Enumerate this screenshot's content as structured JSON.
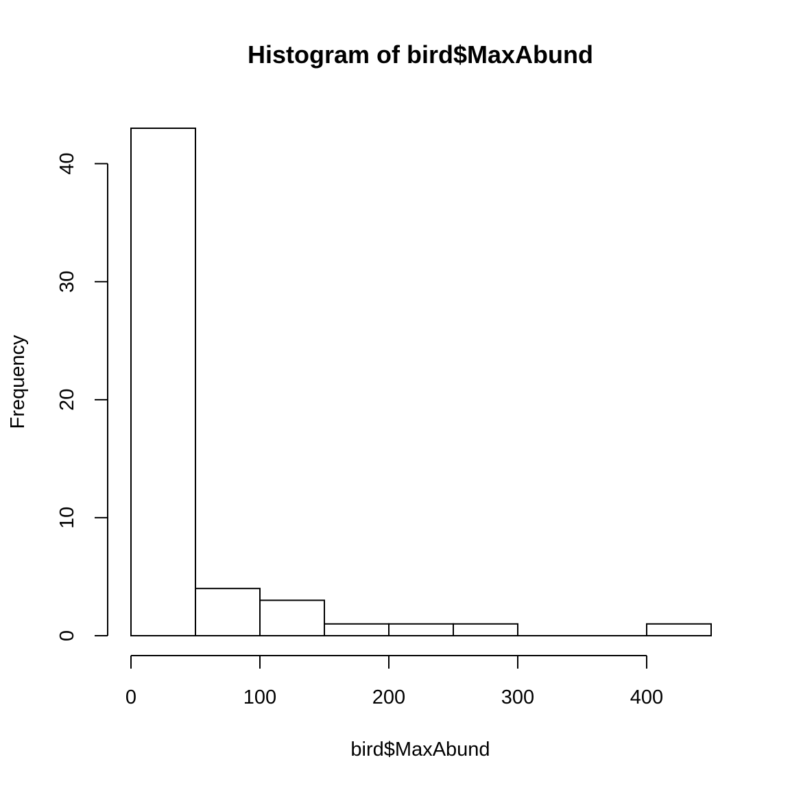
{
  "chart_data": {
    "type": "bar",
    "title": "Histogram of bird$MaxAbund",
    "xlabel": "bird$MaxAbund",
    "ylabel": "Frequency",
    "bins": [
      {
        "start": 0,
        "end": 50,
        "count": 43
      },
      {
        "start": 50,
        "end": 100,
        "count": 4
      },
      {
        "start": 100,
        "end": 150,
        "count": 3
      },
      {
        "start": 150,
        "end": 200,
        "count": 1
      },
      {
        "start": 200,
        "end": 250,
        "count": 1
      },
      {
        "start": 250,
        "end": 300,
        "count": 1
      },
      {
        "start": 300,
        "end": 350,
        "count": 0
      },
      {
        "start": 350,
        "end": 400,
        "count": 0
      },
      {
        "start": 400,
        "end": 450,
        "count": 1
      }
    ],
    "x_ticks": [
      0,
      100,
      200,
      300,
      400
    ],
    "y_ticks": [
      0,
      10,
      20,
      30,
      40
    ],
    "xlim": [
      0,
      450
    ],
    "ylim": [
      0,
      43
    ],
    "grid": false
  }
}
